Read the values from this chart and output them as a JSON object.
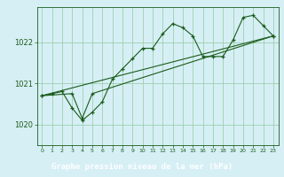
{
  "title": "Graphe pression niveau de la mer (hPa)",
  "bg_color": "#cce8d0",
  "plot_bg_color": "#d6eff5",
  "grid_color": "#9fcfaf",
  "line_color": "#1a5c1a",
  "label_bg": "#2d6b2d",
  "label_fg": "#ffffff",
  "xlim": [
    -0.5,
    23.5
  ],
  "ylim": [
    1019.5,
    1022.85
  ],
  "yticks": [
    1020,
    1021,
    1022
  ],
  "xticks": [
    0,
    1,
    2,
    3,
    4,
    5,
    6,
    7,
    8,
    9,
    10,
    11,
    12,
    13,
    14,
    15,
    16,
    17,
    18,
    19,
    20,
    21,
    22,
    23
  ],
  "line1_x": [
    0,
    1,
    2,
    3,
    4,
    5,
    6,
    7,
    8,
    9,
    10,
    11,
    12,
    13,
    14,
    15,
    16,
    17,
    18,
    19,
    20,
    21,
    22,
    23
  ],
  "line1_y": [
    1020.7,
    1020.75,
    1020.8,
    1020.4,
    1020.1,
    1020.3,
    1020.55,
    1021.1,
    1021.35,
    1021.6,
    1021.85,
    1021.85,
    1022.2,
    1022.45,
    1022.35,
    1022.15,
    1021.65,
    1021.65,
    1021.65,
    1022.05,
    1022.6,
    1022.65,
    1022.4,
    1022.15
  ],
  "line2_x": [
    0,
    3,
    4,
    5,
    23
  ],
  "line2_y": [
    1020.7,
    1020.75,
    1020.15,
    1020.75,
    1022.15
  ],
  "line3_x": [
    0,
    23
  ],
  "line3_y": [
    1020.7,
    1022.15
  ]
}
